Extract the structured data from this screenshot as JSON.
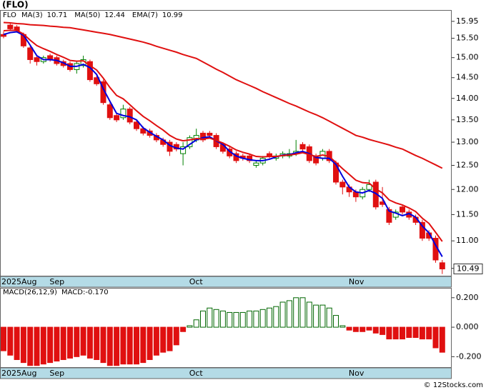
{
  "header": {
    "title": "(FLO)",
    "copyright": "© 12Stocks.com"
  },
  "chart_data": [
    {
      "type": "candlestick",
      "symbol": "FLO",
      "categories": [
        "2025Aug",
        null,
        null,
        null,
        null,
        null,
        null,
        null,
        "Sep",
        null,
        null,
        null,
        null,
        null,
        null,
        null,
        null,
        null,
        null,
        null,
        null,
        null,
        null,
        null,
        null,
        null,
        null,
        null,
        null,
        "Oct",
        null,
        null,
        null,
        null,
        null,
        null,
        null,
        null,
        null,
        null,
        null,
        null,
        null,
        null,
        null,
        null,
        null,
        null,
        null,
        null,
        null,
        null,
        null,
        "Nov",
        null,
        null,
        null,
        null,
        null,
        null,
        null,
        null,
        null,
        null,
        null,
        null,
        null
      ],
      "open": [
        15.6,
        15.85,
        15.8,
        15.6,
        15.25,
        15.0,
        14.9,
        15.05,
        15.0,
        14.9,
        14.85,
        14.7,
        14.8,
        14.9,
        14.5,
        14.4,
        13.85,
        13.6,
        13.55,
        13.75,
        13.45,
        13.3,
        13.25,
        13.15,
        13.05,
        13.0,
        12.95,
        12.75,
        12.9,
        13.05,
        13.2,
        13.2,
        13.15,
        12.95,
        12.85,
        12.75,
        12.7,
        12.7,
        12.5,
        12.55,
        12.75,
        12.65,
        12.7,
        12.7,
        12.75,
        12.95,
        12.9,
        12.7,
        12.65,
        12.8,
        12.55,
        12.15,
        12.05,
        11.95,
        11.85,
        12.0,
        12.15,
        11.75,
        11.6,
        11.45,
        11.65,
        11.55,
        11.45,
        11.35,
        11.15,
        11.05,
        10.6
      ],
      "high": [
        15.68,
        15.9,
        15.85,
        15.65,
        15.3,
        15.05,
        15.05,
        15.1,
        15.05,
        14.95,
        14.9,
        14.9,
        15.05,
        14.95,
        14.55,
        14.45,
        13.9,
        13.65,
        13.85,
        13.8,
        13.5,
        13.35,
        13.3,
        13.2,
        13.1,
        13.05,
        13.0,
        13.0,
        13.15,
        13.3,
        13.25,
        13.25,
        13.2,
        13.0,
        12.9,
        12.8,
        12.75,
        12.75,
        12.6,
        12.7,
        12.8,
        12.75,
        12.8,
        12.85,
        13.05,
        13.0,
        12.95,
        12.75,
        12.85,
        12.85,
        12.6,
        12.2,
        12.1,
        12.0,
        12.05,
        12.2,
        12.2,
        12.05,
        11.65,
        11.6,
        11.7,
        11.6,
        11.5,
        11.4,
        11.2,
        11.1,
        10.65
      ],
      "low": [
        15.5,
        15.7,
        15.65,
        15.25,
        14.85,
        14.8,
        14.85,
        14.9,
        14.8,
        14.75,
        14.65,
        14.6,
        14.75,
        14.4,
        14.3,
        13.85,
        13.5,
        13.45,
        13.5,
        13.4,
        13.25,
        13.15,
        13.1,
        13.0,
        12.9,
        12.7,
        12.8,
        12.5,
        12.85,
        13.0,
        13.0,
        13.1,
        12.85,
        12.75,
        12.65,
        12.55,
        12.6,
        12.55,
        12.45,
        12.5,
        12.65,
        12.6,
        12.65,
        12.65,
        12.7,
        12.8,
        12.55,
        12.5,
        12.6,
        12.55,
        12.1,
        11.9,
        11.85,
        11.75,
        11.8,
        11.95,
        11.6,
        11.65,
        11.3,
        11.4,
        11.5,
        11.4,
        11.3,
        11.0,
        11.0,
        10.6,
        10.4
      ],
      "close": [
        15.55,
        15.75,
        15.7,
        15.3,
        14.95,
        14.9,
        15.0,
        14.95,
        14.85,
        14.8,
        14.7,
        14.85,
        14.95,
        14.45,
        14.35,
        13.9,
        13.55,
        13.5,
        13.75,
        13.45,
        13.3,
        13.2,
        13.15,
        13.05,
        12.95,
        12.8,
        12.85,
        12.9,
        13.1,
        13.15,
        13.05,
        13.15,
        12.9,
        12.8,
        12.7,
        12.6,
        12.65,
        12.6,
        12.55,
        12.65,
        12.7,
        12.7,
        12.75,
        12.75,
        12.8,
        12.85,
        12.6,
        12.55,
        12.8,
        12.6,
        12.15,
        12.05,
        11.95,
        11.85,
        12.0,
        12.1,
        11.65,
        11.7,
        11.35,
        11.55,
        11.55,
        11.45,
        11.35,
        11.05,
        11.05,
        10.65,
        10.49
      ],
      "series": [
        {
          "name": "MA(3)",
          "color": "#0000dd",
          "values": [
            15.6,
            15.65,
            15.67,
            15.58,
            15.32,
            15.05,
            14.95,
            14.95,
            14.93,
            14.87,
            14.78,
            14.78,
            14.83,
            14.75,
            14.58,
            14.23,
            13.93,
            13.65,
            13.6,
            13.57,
            13.5,
            13.32,
            13.22,
            13.13,
            13.05,
            12.93,
            12.87,
            12.85,
            12.95,
            13.05,
            13.1,
            13.12,
            13.03,
            12.95,
            12.8,
            12.7,
            12.65,
            12.62,
            12.6,
            12.6,
            12.63,
            12.68,
            12.72,
            12.73,
            12.77,
            12.8,
            12.75,
            12.67,
            12.65,
            12.65,
            12.52,
            12.27,
            12.05,
            11.95,
            11.93,
            11.98,
            11.92,
            11.82,
            11.57,
            11.53,
            11.48,
            11.52,
            11.45,
            11.28,
            11.15,
            10.92,
            10.71
          ]
        },
        {
          "name": "MA(50)",
          "color": "#e01010",
          "values": [
            15.92,
            15.91,
            15.89,
            15.88,
            15.86,
            15.85,
            15.84,
            15.82,
            15.81,
            15.79,
            15.78,
            15.75,
            15.72,
            15.69,
            15.66,
            15.63,
            15.6,
            15.56,
            15.52,
            15.48,
            15.44,
            15.4,
            15.35,
            15.29,
            15.24,
            15.19,
            15.14,
            15.08,
            15.03,
            14.98,
            14.89,
            14.8,
            14.71,
            14.63,
            14.54,
            14.45,
            14.38,
            14.31,
            14.24,
            14.16,
            14.09,
            14.02,
            13.95,
            13.88,
            13.82,
            13.75,
            13.68,
            13.62,
            13.55,
            13.47,
            13.39,
            13.31,
            13.23,
            13.15,
            13.11,
            13.06,
            13.02,
            12.98,
            12.94,
            12.89,
            12.85,
            12.78,
            12.71,
            12.65,
            12.58,
            12.51,
            12.44
          ]
        },
        {
          "name": "EMA(7)",
          "color": "#e01010",
          "values": [
            15.7,
            15.71,
            15.71,
            15.61,
            15.45,
            15.31,
            15.23,
            15.16,
            15.08,
            15.01,
            14.93,
            14.91,
            14.92,
            14.8,
            14.69,
            14.49,
            14.26,
            14.07,
            13.99,
            13.85,
            13.71,
            13.58,
            13.48,
            13.37,
            13.27,
            13.15,
            13.07,
            13.03,
            13.05,
            13.08,
            13.07,
            13.09,
            13.04,
            12.98,
            12.91,
            12.83,
            12.78,
            12.74,
            12.69,
            12.68,
            12.69,
            12.69,
            12.71,
            12.72,
            12.74,
            12.77,
            12.73,
            12.69,
            12.72,
            12.69,
            12.56,
            12.43,
            12.31,
            12.19,
            12.14,
            12.13,
            12.01,
            11.93,
            11.79,
            11.73,
            11.69,
            11.63,
            11.56,
            11.43,
            11.33,
            11.16,
            10.99
          ]
        }
      ],
      "ylim": [
        10.37,
        16.24
      ],
      "log_scale": true,
      "yticks": [
        15.95,
        {
          "value": 15.5,
          "label": "15.50"
        },
        {
          "value": 15,
          "label": "15.00"
        },
        {
          "value": 14.5,
          "label": "14.50"
        },
        {
          "value": 14,
          "label": "14.00"
        },
        {
          "value": 13.5,
          "label": "13.50"
        },
        {
          "value": 13,
          "label": "13.00"
        },
        {
          "value": 12.5,
          "label": "12.50"
        },
        {
          "value": 12,
          "label": "12.00"
        },
        {
          "value": 11.5,
          "label": "11.50"
        },
        {
          "value": 11,
          "label": "11.00"
        },
        {
          "value": 10.5,
          "label": "10.50"
        }
      ],
      "up_color": "#008000",
      "down_color": "#e01010"
    },
    {
      "type": "bar",
      "title": "MACD(26,12,9)",
      "subtitle": "MACD:-0.170",
      "categories": [
        "2025Aug",
        null,
        null,
        null,
        null,
        null,
        null,
        null,
        "Sep",
        null,
        null,
        null,
        null,
        null,
        null,
        null,
        null,
        null,
        null,
        null,
        null,
        null,
        null,
        null,
        null,
        null,
        null,
        null,
        null,
        "Oct",
        null,
        null,
        null,
        null,
        null,
        null,
        null,
        null,
        null,
        null,
        null,
        null,
        null,
        null,
        null,
        null,
        null,
        null,
        null,
        null,
        null,
        null,
        null,
        "Nov",
        null,
        null,
        null,
        null,
        null,
        null,
        null,
        null,
        null,
        null,
        null,
        null,
        null
      ],
      "values": [
        -0.16,
        -0.19,
        -0.22,
        -0.24,
        -0.26,
        -0.26,
        -0.25,
        -0.24,
        -0.23,
        -0.22,
        -0.21,
        -0.2,
        -0.19,
        -0.21,
        -0.22,
        -0.24,
        -0.26,
        -0.26,
        -0.25,
        -0.25,
        -0.25,
        -0.24,
        -0.22,
        -0.19,
        -0.17,
        -0.16,
        -0.12,
        -0.03,
        0.01,
        0.05,
        0.11,
        0.13,
        0.12,
        0.11,
        0.1,
        0.1,
        0.1,
        0.11,
        0.11,
        0.12,
        0.13,
        0.14,
        0.17,
        0.18,
        0.2,
        0.2,
        0.17,
        0.15,
        0.15,
        0.13,
        0.08,
        0.01,
        -0.02,
        -0.03,
        -0.03,
        -0.02,
        -0.04,
        -0.05,
        -0.08,
        -0.08,
        -0.08,
        -0.07,
        -0.07,
        -0.08,
        -0.08,
        -0.14,
        -0.17
      ],
      "ylim": [
        -0.271,
        0.262
      ],
      "yticks": [
        {
          "value": 0.2,
          "label": "0.200"
        },
        {
          "value": 0,
          "label": "0.000"
        },
        {
          "value": -0.2,
          "label": "-0.200"
        }
      ],
      "up_color": "#006600",
      "down_color": "#e01010"
    }
  ]
}
